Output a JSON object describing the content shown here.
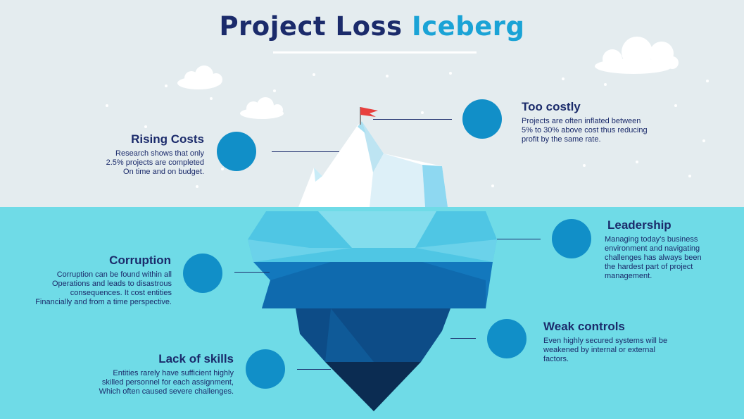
{
  "title": {
    "part1": "Project Loss",
    "part2": "Iceberg"
  },
  "colors": {
    "title_dark": "#1b2b6b",
    "title_accent": "#1aa3d6",
    "sky": "#e4ecef",
    "sea": "#6fdbe7",
    "icon_bg": "#118fc8",
    "flag": "#e8403e"
  },
  "items": {
    "too_costly": {
      "heading": "Too costly",
      "icon": "dollar-cycle-icon",
      "lines": [
        "Projects are often inflated between",
        "5% to 30% above cost thus reducing",
        "profit by the same rate."
      ]
    },
    "rising_costs": {
      "heading": "Rising Costs",
      "icon": "calculator-graph-icon",
      "lines": [
        "Research shows that only",
        "2.5% projects are completed",
        "On time and on budget."
      ]
    },
    "leadership": {
      "heading": "Leadership",
      "icon": "podium-speaker-icon",
      "lines": [
        "Managing today's business",
        "environment and navigating",
        "challenges has always been",
        "the hardest part of project",
        "management."
      ]
    },
    "corruption": {
      "heading": "Corruption",
      "icon": "money-envelope-icon",
      "lines": [
        "Corruption can be found within all",
        "Operations and leads to disastrous",
        "consequences. It cost entities",
        "Financially and from a time perspective."
      ]
    },
    "weak_controls": {
      "heading": "Weak controls",
      "icon": "control-panel-icon",
      "lines": [
        "Even highly secured systems will be",
        "weakened by internal or external",
        "factors."
      ]
    },
    "lack_of_skills": {
      "heading": "Lack of skills",
      "icon": "head-ideas-icon",
      "lines": [
        "Entities rarely have sufficient highly",
        "skilled personnel for each assignment,",
        "Which often caused severe challenges."
      ]
    }
  }
}
